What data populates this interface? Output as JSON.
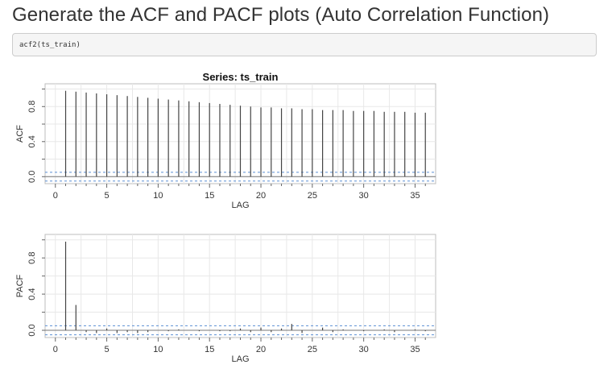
{
  "page": {
    "heading": "Generate the ACF and PACF plots (Auto Correlation Function)",
    "code": "acf2(ts_train)"
  },
  "chart_data": [
    {
      "type": "bar",
      "title": "Series:  ts_train",
      "xlabel": "LAG",
      "ylabel": "ACF",
      "xlim": [
        -1,
        37
      ],
      "ylim": [
        -0.08,
        1.06
      ],
      "xticks": [
        0,
        5,
        10,
        15,
        20,
        25,
        30,
        35
      ],
      "yticks": [
        0.0,
        0.4,
        0.8
      ],
      "ytick_labels": [
        "0.0",
        "0.4",
        "0.8"
      ],
      "grid": true,
      "confidence_bound": 0.05,
      "x": [
        1,
        2,
        3,
        4,
        5,
        6,
        7,
        8,
        9,
        10,
        11,
        12,
        13,
        14,
        15,
        16,
        17,
        18,
        19,
        20,
        21,
        22,
        23,
        24,
        25,
        26,
        27,
        28,
        29,
        30,
        31,
        32,
        33,
        34,
        35,
        36
      ],
      "values": [
        0.98,
        0.97,
        0.96,
        0.95,
        0.94,
        0.93,
        0.92,
        0.91,
        0.9,
        0.89,
        0.88,
        0.87,
        0.86,
        0.85,
        0.84,
        0.83,
        0.82,
        0.81,
        0.8,
        0.79,
        0.79,
        0.78,
        0.78,
        0.77,
        0.77,
        0.76,
        0.76,
        0.76,
        0.75,
        0.75,
        0.75,
        0.74,
        0.74,
        0.74,
        0.73,
        0.73
      ]
    },
    {
      "type": "bar",
      "title": "",
      "xlabel": "LAG",
      "ylabel": "PACF",
      "xlim": [
        -1,
        37
      ],
      "ylim": [
        -0.08,
        1.06
      ],
      "xticks": [
        0,
        5,
        10,
        15,
        20,
        25,
        30,
        35
      ],
      "yticks": [
        0.0,
        0.4,
        0.8
      ],
      "ytick_labels": [
        "0.0",
        "0.4",
        "0.8"
      ],
      "grid": true,
      "confidence_bound": 0.05,
      "x": [
        1,
        2,
        3,
        4,
        5,
        6,
        7,
        8,
        9,
        10,
        11,
        12,
        13,
        14,
        15,
        16,
        17,
        18,
        19,
        20,
        21,
        22,
        23,
        24,
        25,
        26,
        27,
        28,
        29,
        30,
        31,
        32,
        33,
        34,
        35,
        36
      ],
      "values": [
        0.98,
        0.28,
        -0.02,
        -0.03,
        0.02,
        -0.03,
        -0.02,
        -0.03,
        -0.02,
        0.0,
        -0.01,
        0.01,
        0.0,
        -0.01,
        0.0,
        -0.01,
        -0.01,
        0.02,
        -0.02,
        0.03,
        -0.02,
        0.02,
        0.07,
        -0.03,
        0.0,
        0.03,
        -0.02,
        0.01,
        0.0,
        -0.01,
        0.0,
        0.01,
        -0.02,
        0.0,
        0.01,
        -0.01
      ]
    }
  ]
}
